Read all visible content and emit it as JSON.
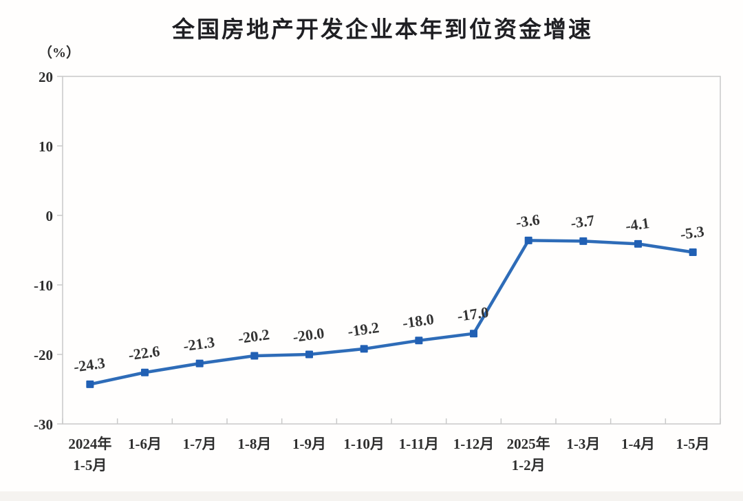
{
  "page": {
    "title": "全国房地产开发企业本年到位资金增速",
    "unit_label": "（%）"
  },
  "chart_data": {
    "type": "line",
    "title": "全国房地产开发企业本年到位资金增速",
    "ylabel": "（%）",
    "categories": [
      "2024年\n1-5月",
      "1-6月",
      "1-7月",
      "1-8月",
      "1-9月",
      "1-10月",
      "1-11月",
      "1-12月",
      "2025年\n1-2月",
      "1-3月",
      "1-4月",
      "1-5月"
    ],
    "values": [
      -24.3,
      -22.6,
      -21.3,
      -20.2,
      -20.0,
      -19.2,
      -18.0,
      -17.0,
      -3.6,
      -3.7,
      -4.1,
      -5.3
    ],
    "data_labels": [
      "-24.3",
      "-22.6",
      "-21.3",
      "-20.2",
      "-20.0",
      "-19.2",
      "-18.0",
      "-17.0",
      "-3.6",
      "-3.7",
      "-4.1",
      "-5.3"
    ],
    "ylim": [
      -30,
      20
    ],
    "y_tick_values": [
      20,
      10,
      0,
      -10,
      -20,
      -30
    ],
    "y_tick_labels": [
      "20",
      "10",
      "0",
      "-10",
      "-20",
      "-30"
    ],
    "grid": false,
    "legend": false,
    "line_color": "#2e6cb8",
    "marker_color": "#2160b4",
    "marker": "square",
    "axis_color": "#c9c9c9",
    "text_color": "#2e2e2e"
  }
}
